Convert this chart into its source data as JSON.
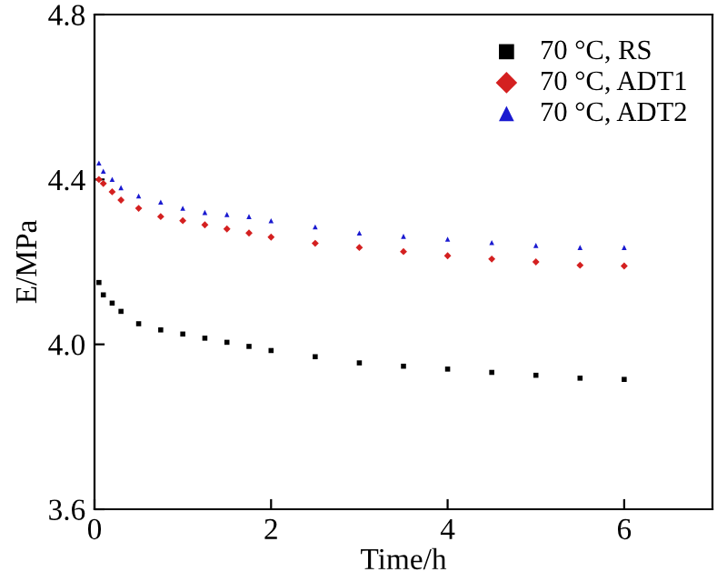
{
  "chart_data": {
    "type": "scatter",
    "xlabel": "Time/h",
    "ylabel": "E/MPa",
    "xlim": [
      0,
      7
    ],
    "ylim": [
      3.6,
      4.8
    ],
    "xticks": [
      0,
      2,
      4,
      6
    ],
    "yticks": [
      {
        "value": 3.6,
        "label": "3.6"
      },
      {
        "value": 4.0,
        "label": "4.0"
      },
      {
        "value": 4.4,
        "label": "4.4"
      },
      {
        "value": 4.8,
        "label": "4.8"
      }
    ],
    "legend": "top right",
    "grid": false,
    "series": [
      {
        "name": "70 °C, RS",
        "color": "#000000",
        "marker": "square",
        "x": [
          0.05,
          0.1,
          0.2,
          0.3,
          0.5,
          0.75,
          1,
          1.25,
          1.5,
          1.75,
          2,
          2.5,
          3,
          3.5,
          4,
          4.5,
          5,
          5.5,
          6
        ],
        "values": [
          4.15,
          4.12,
          4.1,
          4.08,
          4.05,
          4.035,
          4.025,
          4.015,
          4.005,
          3.995,
          3.985,
          3.97,
          3.955,
          3.947,
          3.94,
          3.932,
          3.925,
          3.918,
          3.915
        ]
      },
      {
        "name": "70 °C, ADT1",
        "color": "#d42020",
        "marker": "diamond",
        "x": [
          0.05,
          0.1,
          0.2,
          0.3,
          0.5,
          0.75,
          1,
          1.25,
          1.5,
          1.75,
          2,
          2.5,
          3,
          3.5,
          4,
          4.5,
          5,
          5.5,
          6
        ],
        "values": [
          4.4,
          4.39,
          4.37,
          4.35,
          4.33,
          4.31,
          4.3,
          4.29,
          4.28,
          4.27,
          4.26,
          4.245,
          4.235,
          4.225,
          4.215,
          4.207,
          4.2,
          4.192,
          4.19
        ]
      },
      {
        "name": "70 °C, ADT2",
        "color": "#1a1ad0",
        "marker": "triangle",
        "x": [
          0.05,
          0.1,
          0.2,
          0.3,
          0.5,
          0.75,
          1,
          1.25,
          1.5,
          1.75,
          2,
          2.5,
          3,
          3.5,
          4,
          4.5,
          5,
          5.5,
          6
        ],
        "values": [
          4.44,
          4.42,
          4.4,
          4.38,
          4.36,
          4.345,
          4.33,
          4.32,
          4.315,
          4.31,
          4.3,
          4.285,
          4.27,
          4.262,
          4.255,
          4.247,
          4.24,
          4.235,
          4.235
        ]
      }
    ]
  }
}
